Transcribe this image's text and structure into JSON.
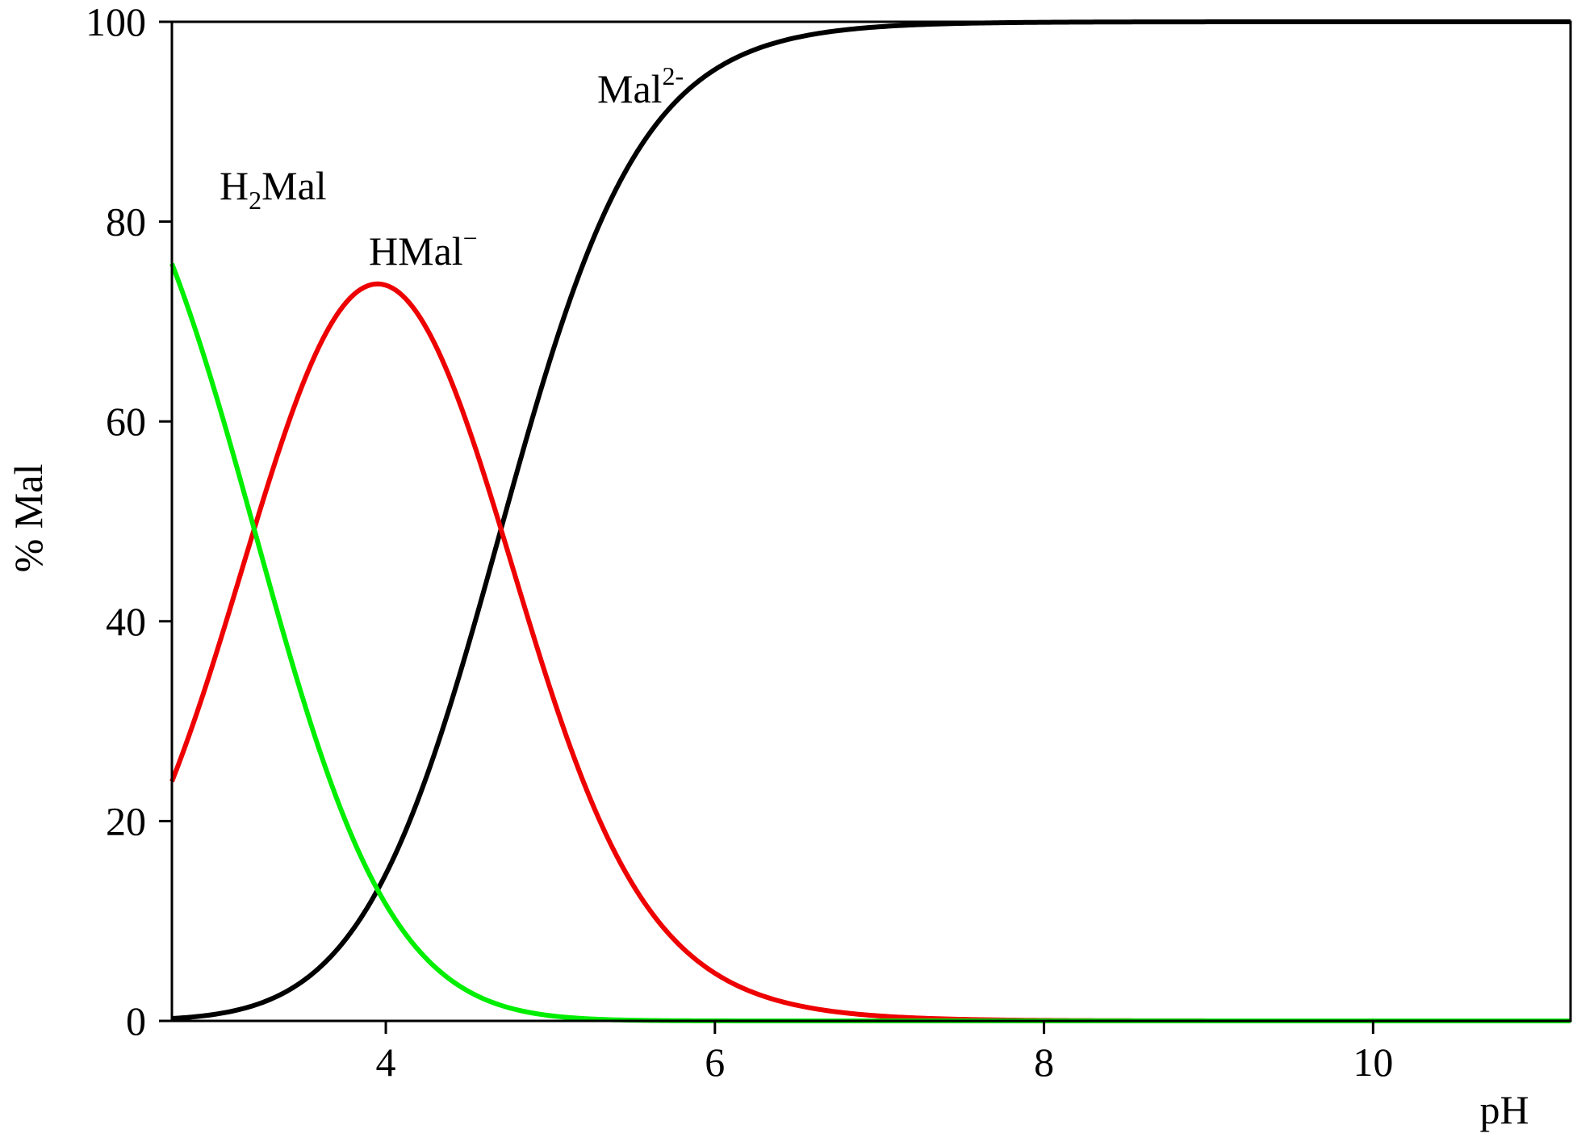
{
  "chart_data": {
    "type": "line",
    "title": "",
    "xlabel": "pH",
    "ylabel": "% Mal",
    "xlim": [
      2.7,
      11.2
    ],
    "ylim": [
      0,
      100
    ],
    "x_ticks": [
      4,
      6,
      8,
      10
    ],
    "y_ticks": [
      0,
      20,
      40,
      60,
      80,
      100
    ],
    "x_tick_labels": [
      "4",
      "6",
      "8",
      "10"
    ],
    "y_tick_labels": [
      "0",
      "20",
      "40",
      "60",
      "80",
      "100"
    ],
    "grid": false,
    "legend": "none",
    "pKa1": 3.2,
    "pKa2": 4.7,
    "series": [
      {
        "name": "H2Mal",
        "label_main": "H",
        "label_sub": "2",
        "label_tail": "Mal",
        "color": "#00ee00",
        "x": [
          2.7,
          3.0,
          3.2,
          3.5,
          3.8,
          4.0,
          4.3,
          4.6,
          5.0,
          5.5,
          6.0,
          7.0,
          8.0,
          9.0,
          10.0,
          11.2
        ],
        "y": [
          83.7,
          60.9,
          48.6,
          32.2,
          18.8,
          13.3,
          7.4,
          3.9,
          1.3,
          0.2,
          0.0,
          0.0,
          0.0,
          0.0,
          0.0,
          0.0
        ]
      },
      {
        "name": "HMal-",
        "label_main": "HMal",
        "label_sup": "−",
        "color": "#ee0000",
        "x": [
          2.7,
          3.0,
          3.2,
          3.5,
          3.8,
          3.95,
          4.1,
          4.3,
          4.5,
          4.7,
          5.0,
          5.3,
          5.6,
          6.0,
          6.5,
          7.0,
          7.3,
          8.0,
          9.0,
          10.0,
          11.2
        ],
        "y": [
          16.3,
          28.6,
          48.6,
          62.3,
          70.3,
          72.7,
          72.1,
          67.0,
          56.1,
          46.5,
          31.9,
          19.9,
          10.9,
          4.8,
          1.6,
          0.5,
          0.3,
          0.0,
          0.0,
          0.0,
          0.0
        ]
      },
      {
        "name": "Mal2-",
        "label_main": "Mal",
        "label_sup": "2-",
        "color": "#000000",
        "x": [
          2.7,
          3.0,
          3.5,
          3.8,
          4.0,
          4.3,
          4.5,
          4.7,
          5.0,
          5.3,
          5.6,
          6.0,
          6.5,
          7.0,
          8.0,
          9.0,
          10.0,
          11.2
        ],
        "y": [
          0.1,
          0.3,
          2.2,
          6.6,
          11.8,
          25.4,
          36.8,
          50.0,
          66.5,
          79.7,
          88.7,
          95.1,
          98.3,
          99.4,
          99.9,
          100.0,
          100.0,
          100.0
        ]
      }
    ]
  }
}
